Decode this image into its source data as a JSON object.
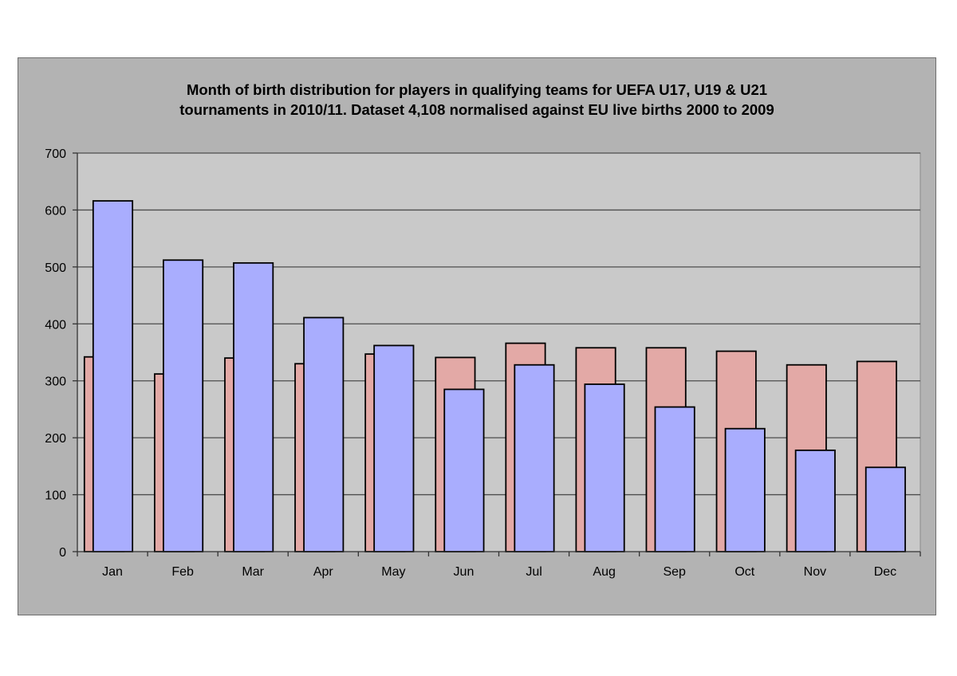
{
  "chart_data": {
    "type": "bar",
    "title_lines": [
      "Month of birth distribution for players in qualifying teams for UEFA U17, U19 & U21",
      "tournaments in 2010/11. Dataset 4,108 normalised against EU live births 2000 to 2009"
    ],
    "categories": [
      "Jan",
      "Feb",
      "Mar",
      "Apr",
      "May",
      "Jun",
      "Jul",
      "Aug",
      "Sep",
      "Oct",
      "Nov",
      "Dec"
    ],
    "series": [
      {
        "values": [
          342,
          312,
          340,
          330,
          347,
          341,
          366,
          358,
          358,
          352,
          328,
          334
        ],
        "color": "#e3a9a6"
      },
      {
        "values": [
          616,
          512,
          507,
          411,
          362,
          285,
          328,
          294,
          254,
          216,
          178,
          148
        ],
        "color": "#a9adfe"
      }
    ],
    "yticks": [
      "0",
      "100",
      "200",
      "300",
      "400",
      "500",
      "600",
      "700"
    ],
    "ylim": [
      0,
      700
    ],
    "grid": true,
    "legend": "none",
    "plot_background": "#c9c9c9",
    "frame_background": "#b3b3b3"
  }
}
